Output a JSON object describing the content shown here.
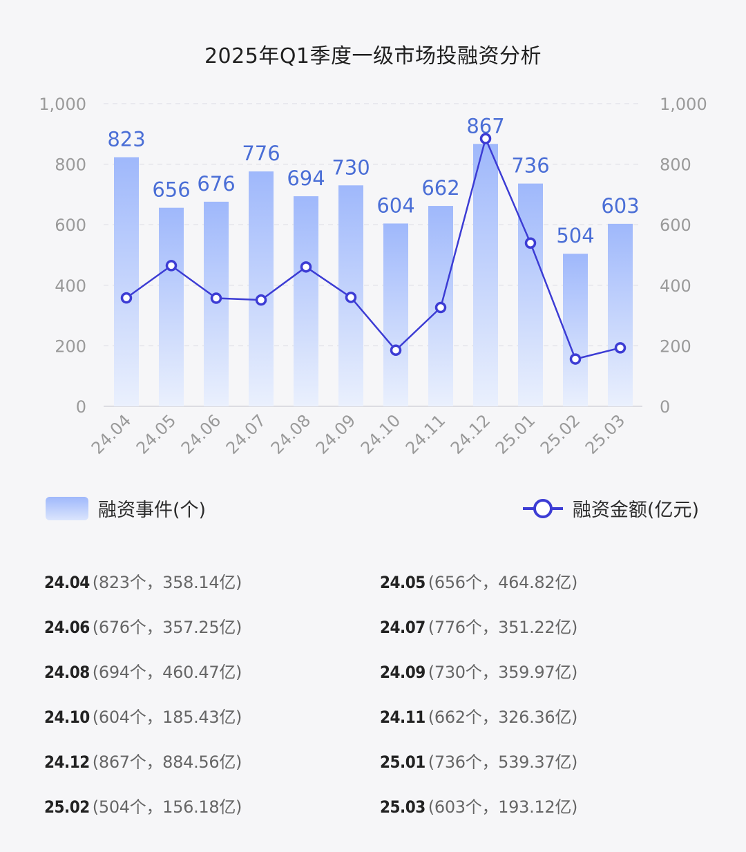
{
  "title": "2025年Q1季度一级市场投融资分析",
  "chart_data": {
    "type": "bar",
    "categories": [
      "24.04",
      "24.05",
      "24.06",
      "24.07",
      "24.08",
      "24.09",
      "24.10",
      "24.11",
      "24.12",
      "25.01",
      "25.02",
      "25.03"
    ],
    "series": [
      {
        "name": "融资事件(个)",
        "type": "bar",
        "axis": "left",
        "values": [
          823,
          656,
          676,
          776,
          694,
          730,
          604,
          662,
          867,
          736,
          504,
          603
        ]
      },
      {
        "name": "融资金额(亿元)",
        "type": "line",
        "axis": "right",
        "values": [
          358.14,
          464.82,
          357.25,
          351.22,
          460.47,
          359.97,
          185.43,
          326.36,
          884.56,
          539.37,
          156.18,
          193.12
        ]
      }
    ],
    "bar_labels": [
      "823",
      "656",
      "676",
      "776",
      "694",
      "730",
      "604",
      "662",
      "867",
      "736",
      "504",
      "603"
    ],
    "ylim": [
      0,
      1000
    ],
    "yticks": [
      0,
      200,
      400,
      600,
      800,
      1000
    ],
    "ytick_labels": [
      "0",
      "200",
      "400",
      "600",
      "800",
      "1,000"
    ],
    "y2lim": [
      0,
      1000
    ],
    "y2tick_labels": [
      "0",
      "200",
      "400",
      "600",
      "800",
      "1,000"
    ],
    "grid": true,
    "legend_position": "bottom",
    "colors": {
      "bar_top": "#9fb8fb",
      "bar_bottom": "#e6edfd",
      "line": "#3c3cd4",
      "bar_label": "#4a6ed6",
      "axis_text": "#9a9a9a",
      "grid": "#e4e4ea"
    }
  },
  "legend": {
    "bar_label": "融资事件(个)",
    "line_label": "融资金额(亿元)"
  },
  "details": [
    {
      "date": "24.04",
      "detail": "(823个，358.14亿)"
    },
    {
      "date": "24.05",
      "detail": "(656个，464.82亿)"
    },
    {
      "date": "24.06",
      "detail": "(676个，357.25亿)"
    },
    {
      "date": "24.07",
      "detail": "(776个，351.22亿)"
    },
    {
      "date": "24.08",
      "detail": "(694个，460.47亿)"
    },
    {
      "date": "24.09",
      "detail": "(730个，359.97亿)"
    },
    {
      "date": "24.10",
      "detail": "(604个，185.43亿)"
    },
    {
      "date": "24.11",
      "detail": "(662个，326.36亿)"
    },
    {
      "date": "24.12",
      "detail": "(867个，884.56亿)"
    },
    {
      "date": "25.01",
      "detail": "(736个，539.37亿)"
    },
    {
      "date": "25.02",
      "detail": "(504个，156.18亿)"
    },
    {
      "date": "25.03",
      "detail": "(603个，193.12亿)"
    }
  ]
}
